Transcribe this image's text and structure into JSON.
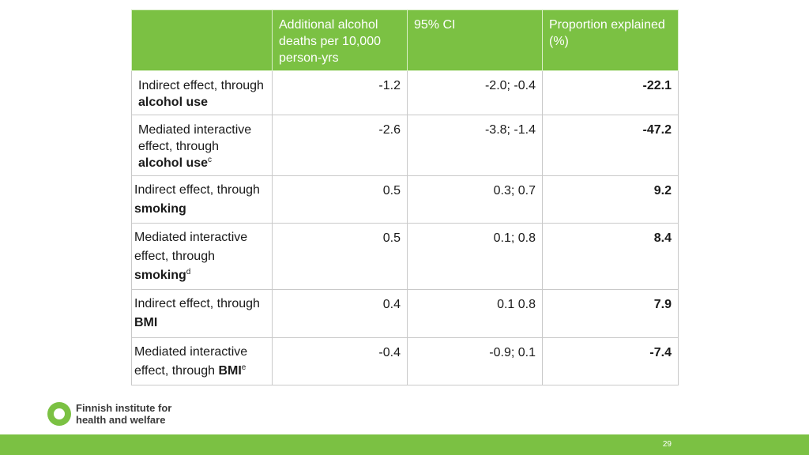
{
  "table": {
    "headers": [
      "",
      "Additional alcohol deaths per 10,000 person-yrs",
      "95% CI",
      "Proportion explained (%)"
    ],
    "rows": [
      {
        "pre": "Indirect effect, through ",
        "bold": "alcohol use",
        "sup": "",
        "est": "-1.2",
        "ci": "-2.0; -0.4",
        "prop": "-22.1"
      },
      {
        "pre": "Mediated interactive effect, through ",
        "bold": "alcohol use",
        "sup": "c",
        "est": "-2.6",
        "ci": "-3.8; -1.4",
        "prop": "-47.2"
      },
      {
        "pre": "Indirect effect, through ",
        "bold": "smoking",
        "sup": "",
        "est": "0.5",
        "ci": "0.3; 0.7",
        "prop": "9.2"
      },
      {
        "pre": "Mediated interactive effect, through ",
        "bold": "smoking",
        "sup": "d",
        "est": "0.5",
        "ci": "0.1; 0.8",
        "prop": "8.4"
      },
      {
        "pre": "Indirect effect, through ",
        "bold": "BMI",
        "sup": "",
        "est": "0.4",
        "ci": "0.1 0.8",
        "prop": "7.9"
      },
      {
        "pre": "Mediated interactive effect, through ",
        "bold": "BMI",
        "sup": "e",
        "est": "-0.4",
        "ci": "-0.9; 0.1",
        "prop": "-7.4"
      }
    ]
  },
  "footer": {
    "logo_line1": "Finnish institute for",
    "logo_line2": "health and welfare",
    "page_number": "29"
  },
  "colors": {
    "accent": "#7bc143"
  }
}
